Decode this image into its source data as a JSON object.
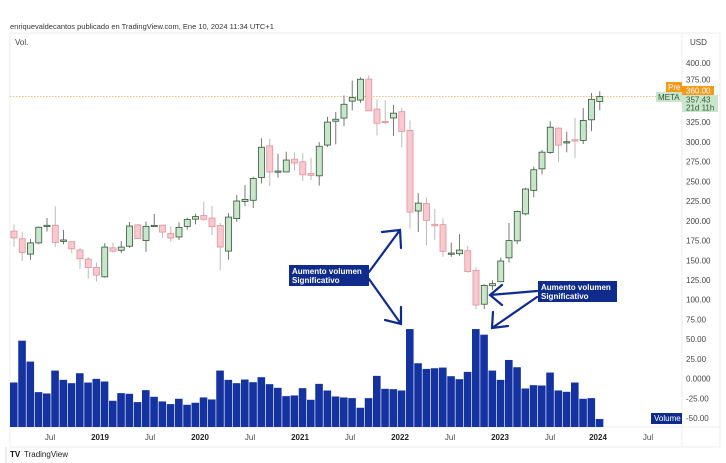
{
  "header": {
    "attribution": "enriquevaldecantos publicado en TradingView.com, Ene 10, 2024 11:34 UTC+1",
    "pane_label": "Vol."
  },
  "price_axis": {
    "currency": "USD",
    "ticks": [
      "400.00",
      "375.00",
      "350.00",
      "325.00",
      "300.00",
      "275.00",
      "250.00",
      "225.00",
      "200.00",
      "175.00",
      "150.00",
      "125.00",
      "100.00",
      "75.00",
      "50.00",
      "25.00",
      "0.0000",
      "-25.00",
      "-50.00"
    ],
    "tick_values": [
      400,
      375,
      350,
      325,
      300,
      275,
      250,
      225,
      200,
      175,
      150,
      125,
      100,
      75,
      50,
      25,
      0,
      -25,
      -50
    ]
  },
  "time_axis": {
    "labels": [
      "Jul",
      "2019",
      "Jul",
      "2020",
      "Jul",
      "2021",
      "Jul",
      "2022",
      "Jul",
      "2023",
      "Jul",
      "2024",
      "Jul"
    ],
    "bold": [
      false,
      true,
      false,
      true,
      false,
      true,
      false,
      true,
      false,
      true,
      false,
      true,
      false
    ]
  },
  "badges": {
    "pre_label": "Pre",
    "pre_value": "360.00",
    "symbol": "META",
    "last_price": "357.43",
    "countdown": "21d 11h",
    "volume_label": "Volume"
  },
  "annotations": [
    {
      "line1": "Aumento volumen",
      "line2": "Significativo"
    },
    {
      "line1": "Aumento volumen",
      "line2": "Significativo"
    }
  ],
  "footer": {
    "brand": "TradingView"
  },
  "colors": {
    "up_fill": "#c9e5cb",
    "up_border": "#2f5733",
    "down_fill": "#f9c9d0",
    "down_border": "#e0919c",
    "volume": "#1533a0",
    "annotation": "#0f2b8c",
    "pre": "#f39a1b",
    "last": "#c9e5cb"
  },
  "chart_data": {
    "type": "candlestick",
    "interval": "monthly",
    "symbol": "META",
    "start_month": "2018-02",
    "ohlc": [
      [
        186.9,
        195.3,
        167.2,
        178.3
      ],
      [
        177.3,
        186.1,
        149.0,
        159.8
      ],
      [
        157.8,
        177.1,
        150.5,
        172.0
      ],
      [
        172.0,
        192.7,
        170.2,
        191.8
      ],
      [
        193.1,
        203.6,
        186.4,
        194.3
      ],
      [
        194.3,
        218.6,
        166.6,
        172.6
      ],
      [
        173.9,
        188.3,
        170.3,
        175.7
      ],
      [
        173.5,
        173.9,
        158.9,
        164.5
      ],
      [
        163.0,
        165.9,
        139.0,
        151.8
      ],
      [
        151.5,
        154.1,
        126.9,
        140.6
      ],
      [
        141.0,
        147.2,
        123.0,
        131.1
      ],
      [
        129.0,
        171.7,
        127.9,
        166.7
      ],
      [
        165.8,
        172.5,
        159.6,
        161.5
      ],
      [
        162.6,
        174.3,
        159.3,
        166.7
      ],
      [
        167.8,
        198.5,
        165.9,
        193.4
      ],
      [
        194.8,
        196.2,
        176.9,
        177.5
      ],
      [
        175.0,
        198.9,
        160.8,
        193.0
      ],
      [
        194.0,
        208.7,
        192.7,
        194.2
      ],
      [
        194.5,
        194.8,
        178.5,
        185.7
      ],
      [
        184.0,
        193.1,
        173.1,
        178.1
      ],
      [
        179.5,
        198.1,
        175.7,
        191.7
      ],
      [
        192.9,
        204.0,
        189.0,
        201.6
      ],
      [
        202.1,
        208.9,
        195.5,
        205.3
      ],
      [
        206.7,
        224.2,
        200.0,
        201.9
      ],
      [
        203.5,
        218.8,
        182.0,
        192.5
      ],
      [
        194.0,
        197.2,
        137.1,
        166.8
      ],
      [
        161.6,
        209.7,
        150.8,
        204.7
      ],
      [
        202.8,
        232.7,
        198.8,
        225.1
      ],
      [
        224.6,
        245.2,
        218.5,
        227.1
      ],
      [
        226.0,
        255.9,
        216.1,
        253.7
      ],
      [
        255.0,
        304.7,
        247.4,
        293.2
      ],
      [
        295.0,
        304.0,
        244.1,
        261.9
      ],
      [
        262.9,
        285.0,
        254.8,
        263.1
      ],
      [
        261.9,
        287.6,
        261.7,
        277.0
      ],
      [
        278.1,
        286.8,
        263.8,
        273.2
      ],
      [
        274.8,
        285.7,
        250.8,
        258.3
      ],
      [
        260.0,
        280.0,
        251.6,
        257.6
      ],
      [
        257.0,
        299.7,
        244.6,
        294.5
      ],
      [
        296.0,
        331.8,
        293.7,
        325.1
      ],
      [
        326.2,
        337.8,
        296.9,
        328.7
      ],
      [
        330.2,
        358.8,
        320.2,
        347.7
      ],
      [
        351.7,
        377.6,
        340.0,
        356.3
      ],
      [
        353.0,
        382.0,
        349.4,
        379.4
      ],
      [
        379.6,
        384.3,
        339.2,
        339.4
      ],
      [
        341.6,
        353.8,
        308.1,
        323.6
      ],
      [
        326.0,
        352.7,
        322.5,
        324.5
      ],
      [
        330.3,
        347.0,
        307.6,
        336.4
      ],
      [
        338.3,
        343.1,
        293.0,
        313.3
      ],
      [
        314.6,
        327.3,
        190.2,
        211.0
      ],
      [
        212.4,
        235.0,
        185.8,
        222.4
      ],
      [
        221.8,
        229.7,
        169.0,
        200.5
      ],
      [
        195.6,
        215.0,
        176.0,
        193.6
      ],
      [
        195.1,
        203.2,
        154.3,
        161.3
      ],
      [
        159.0,
        172.4,
        154.3,
        159.1
      ],
      [
        158.3,
        183.1,
        155.7,
        162.9
      ],
      [
        162.1,
        168.3,
        134.1,
        135.7
      ],
      [
        137.1,
        140.9,
        88.1,
        93.2
      ],
      [
        94.3,
        119.9,
        88.1,
        118.1
      ],
      [
        117.7,
        124.7,
        112.5,
        120.3
      ],
      [
        122.8,
        153.2,
        122.3,
        149.0
      ],
      [
        153.1,
        197.2,
        147.1,
        174.9
      ],
      [
        174.6,
        213.0,
        170.8,
        211.9
      ],
      [
        208.8,
        241.7,
        207.1,
        240.3
      ],
      [
        238.6,
        268.7,
        229.8,
        264.7
      ],
      [
        265.9,
        289.8,
        258.9,
        287.0
      ],
      [
        286.7,
        326.2,
        284.9,
        318.6
      ],
      [
        317.5,
        318.3,
        274.4,
        295.9
      ],
      [
        299.4,
        312.9,
        286.8,
        300.2
      ],
      [
        302.7,
        330.5,
        279.4,
        301.3
      ],
      [
        301.9,
        342.9,
        297.3,
        327.2
      ],
      [
        328.0,
        361.9,
        313.7,
        354.0
      ],
      [
        351.3,
        364.2,
        340.0,
        357.4
      ]
    ],
    "volume_millions": [
      536,
      1040,
      788,
      420,
      404,
      680,
      568,
      528,
      648,
      536,
      580,
      548,
      316,
      408,
      400,
      300,
      444,
      364,
      308,
      276,
      340,
      268,
      292,
      356,
      332,
      680,
      568,
      528,
      572,
      540,
      600,
      516,
      472,
      372,
      380,
      468,
      328,
      520,
      440,
      368,
      356,
      348,
      232,
      348,
      616,
      460,
      456,
      440,
      1180,
      768,
      700,
      708,
      716,
      612,
      576,
      664,
      1180,
      1112,
      680,
      568,
      808,
      720,
      464,
      504,
      500,
      656,
      440,
      424,
      536,
      340,
      348,
      96
    ],
    "pre_market_price": 360.0,
    "last_price": 357.43,
    "ylim": [
      -60,
      410
    ],
    "grid": false
  }
}
